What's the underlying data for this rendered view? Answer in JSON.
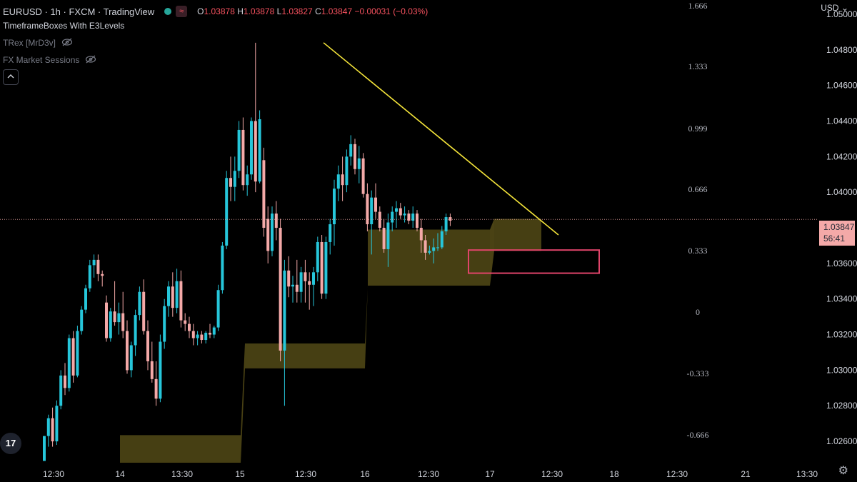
{
  "header": {
    "symbol": "EURUSD · 1h · FXCM · TradingView",
    "ohlc": {
      "o_label": "O",
      "o": "1.03878",
      "h_label": "H",
      "h": "1.03878",
      "l_label": "L",
      "l": "1.03827",
      "c_label": "C",
      "c": "1.03847",
      "change": "−0.00031 (−0.03%)"
    },
    "wave_icon": "≈"
  },
  "indicators": [
    {
      "name": "TimeframeBoxes With E3Levels",
      "hidden": false
    },
    {
      "name": "TRex [MrD3v]",
      "hidden": true
    },
    {
      "name": "FX Market Sessions",
      "hidden": true
    }
  ],
  "currency": "USD",
  "current_price": {
    "value": "1.03847",
    "countdown": "56:41"
  },
  "colors": {
    "up": "#26c6da",
    "down": "#f4a9a8",
    "trendline": "#f5e53a",
    "box": "#4a4214",
    "rect": "#e0446a"
  },
  "chart_data": {
    "type": "candlestick",
    "ylim": [
      1.0248,
      1.0508
    ],
    "y_ticks": [
      "1.05000",
      "1.04800",
      "1.04600",
      "1.04400",
      "1.04200",
      "1.04000",
      "1.03600",
      "1.03400",
      "1.03200",
      "1.03000",
      "1.02800",
      "1.02600"
    ],
    "x_ticks": [
      "12:30",
      "14",
      "13:30",
      "15",
      "12:30",
      "16",
      "12:30",
      "17",
      "12:30",
      "18",
      "12:30",
      "21",
      "13:30"
    ],
    "fib_levels": [
      "1.666",
      "1.333",
      "0.999",
      "0.666",
      "0.333",
      "0",
      "-0.333",
      "-0.666"
    ],
    "candles": [
      [
        1.0249,
        1.0263,
        1.0249,
        1.0263
      ],
      [
        1.0263,
        1.0275,
        1.0257,
        1.0273
      ],
      [
        1.0273,
        1.0279,
        1.0257,
        1.026
      ],
      [
        1.026,
        1.0283,
        1.0258,
        1.028
      ],
      [
        1.028,
        1.03,
        1.0278,
        1.0297
      ],
      [
        1.0297,
        1.0304,
        1.0286,
        1.029
      ],
      [
        1.029,
        1.032,
        1.0288,
        1.0318
      ],
      [
        1.0318,
        1.0322,
        1.0293,
        1.0297
      ],
      [
        1.0297,
        1.0325,
        1.0296,
        1.0322
      ],
      [
        1.0322,
        1.0336,
        1.032,
        1.0334
      ],
      [
        1.0334,
        1.0348,
        1.0332,
        1.0346
      ],
      [
        1.0346,
        1.0362,
        1.0344,
        1.0359
      ],
      [
        1.0359,
        1.0365,
        1.0352,
        1.0362
      ],
      [
        1.0362,
        1.0365,
        1.035,
        1.0354
      ],
      [
        1.0354,
        1.0356,
        1.0347,
        1.0353
      ],
      [
        1.0338,
        1.0342,
        1.0316,
        1.0318
      ],
      [
        1.0318,
        1.0335,
        1.0316,
        1.0333
      ],
      [
        1.0333,
        1.035,
        1.0325,
        1.0327
      ],
      [
        1.0327,
        1.0338,
        1.032,
        1.0332
      ],
      [
        1.0332,
        1.0344,
        1.0318,
        1.0322
      ],
      [
        1.0322,
        1.0328,
        1.0298,
        1.03
      ],
      [
        1.03,
        1.0316,
        1.0296,
        1.0314
      ],
      [
        1.0314,
        1.0334,
        1.0308,
        1.0331
      ],
      [
        1.0331,
        1.0347,
        1.0328,
        1.0344
      ],
      [
        1.0344,
        1.0351,
        1.032,
        1.0322
      ],
      [
        1.0322,
        1.0328,
        1.03,
        1.0305
      ],
      [
        1.0305,
        1.0316,
        1.0293,
        1.0295
      ],
      [
        1.0295,
        1.0305,
        1.028,
        1.0284
      ],
      [
        1.0284,
        1.032,
        1.0282,
        1.0316
      ],
      [
        1.0316,
        1.034,
        1.0312,
        1.0336
      ],
      [
        1.0336,
        1.035,
        1.033,
        1.0347
      ],
      [
        1.0347,
        1.0355,
        1.033,
        1.0335
      ],
      [
        1.0335,
        1.0357,
        1.0332,
        1.035
      ],
      [
        1.035,
        1.0356,
        1.0324,
        1.0328
      ],
      [
        1.0328,
        1.0332,
        1.0322,
        1.0326
      ],
      [
        1.0326,
        1.033,
        1.0318,
        1.0322
      ],
      [
        1.0322,
        1.0326,
        1.0314,
        1.0318
      ],
      [
        1.0318,
        1.0322,
        1.0314,
        1.032
      ],
      [
        1.032,
        1.0322,
        1.0315,
        1.0317
      ],
      [
        1.0317,
        1.0322,
        1.0315,
        1.0321
      ],
      [
        1.0321,
        1.0326,
        1.0318,
        1.032
      ],
      [
        1.032,
        1.0325,
        1.0318,
        1.0324
      ],
      [
        1.0324,
        1.0348,
        1.0322,
        1.0345
      ],
      [
        1.0345,
        1.0372,
        1.0343,
        1.037
      ],
      [
        1.037,
        1.0412,
        1.0368,
        1.0408
      ],
      [
        1.0408,
        1.042,
        1.0395,
        1.0403
      ],
      [
        1.0403,
        1.042,
        1.0395,
        1.0412
      ],
      [
        1.0412,
        1.044,
        1.0408,
        1.0435
      ],
      [
        1.0435,
        1.0442,
        1.0401,
        1.0404
      ],
      [
        1.0404,
        1.0415,
        1.0398,
        1.041
      ],
      [
        1.041,
        1.0442,
        1.0407,
        1.044
      ],
      [
        1.044,
        1.0484,
        1.04,
        1.0406
      ],
      [
        1.0406,
        1.0446,
        1.0405,
        1.0441
      ],
      [
        1.0418,
        1.0425,
        1.0375,
        1.038
      ],
      [
        1.0385,
        1.0392,
        1.036,
        1.0367
      ],
      [
        1.0367,
        1.0392,
        1.0364,
        1.0388
      ],
      [
        1.0388,
        1.0395,
        1.0373,
        1.038
      ],
      [
        1.038,
        1.0385,
        1.0305,
        1.0311
      ],
      [
        1.0311,
        1.0362,
        1.028,
        1.0356
      ],
      [
        1.0356,
        1.0364,
        1.0341,
        1.0347
      ],
      [
        1.0347,
        1.0353,
        1.0338,
        1.0348
      ],
      [
        1.0348,
        1.0362,
        1.0338,
        1.0344
      ],
      [
        1.0344,
        1.0358,
        1.0338,
        1.0355
      ],
      [
        1.0355,
        1.0362,
        1.0338,
        1.035
      ],
      [
        1.035,
        1.0355,
        1.0334,
        1.0348
      ],
      [
        1.0348,
        1.0358,
        1.0336,
        1.0355
      ],
      [
        1.0355,
        1.0375,
        1.035,
        1.0372
      ],
      [
        1.0372,
        1.0376,
        1.034,
        1.0343
      ],
      [
        1.0343,
        1.0375,
        1.034,
        1.0372
      ],
      [
        1.0372,
        1.0385,
        1.0365,
        1.0382
      ],
      [
        1.0382,
        1.0407,
        1.037,
        1.0402
      ],
      [
        1.0402,
        1.0415,
        1.0395,
        1.041
      ],
      [
        1.041,
        1.042,
        1.0395,
        1.0404
      ],
      [
        1.0404,
        1.0424,
        1.04,
        1.042
      ],
      [
        1.042,
        1.0432,
        1.0415,
        1.0427
      ],
      [
        1.0427,
        1.043,
        1.041,
        1.0413
      ],
      [
        1.0413,
        1.0426,
        1.0405,
        1.0419
      ],
      [
        1.0419,
        1.0422,
        1.0397,
        1.0399
      ],
      [
        1.0399,
        1.0405,
        1.0378,
        1.0382
      ],
      [
        1.0382,
        1.0401,
        1.0365,
        1.0397
      ],
      [
        1.0397,
        1.0405,
        1.0385,
        1.0389
      ],
      [
        1.0389,
        1.0392,
        1.0378,
        1.038
      ],
      [
        1.038,
        1.0385,
        1.0366,
        1.0368
      ],
      [
        1.0368,
        1.0388,
        1.0358,
        1.0383
      ],
      [
        1.0383,
        1.0392,
        1.0378,
        1.0389
      ],
      [
        1.0389,
        1.0395,
        1.038,
        1.0391
      ],
      [
        1.0391,
        1.0394,
        1.0385,
        1.0387
      ],
      [
        1.0387,
        1.0392,
        1.0383,
        1.0388
      ],
      [
        1.0388,
        1.039,
        1.0382,
        1.0384
      ],
      [
        1.0384,
        1.0392,
        1.038,
        1.0388
      ],
      [
        1.0388,
        1.039,
        1.0378,
        1.038
      ],
      [
        1.038,
        1.0385,
        1.0366,
        1.0373
      ],
      [
        1.0373,
        1.0376,
        1.0362,
        1.0366
      ],
      [
        1.0366,
        1.037,
        1.0365,
        1.0367
      ],
      [
        1.0367,
        1.0374,
        1.036,
        1.0369
      ],
      [
        1.0369,
        1.0377,
        1.0367,
        1.0369
      ],
      [
        1.0369,
        1.0381,
        1.0368,
        1.0378
      ],
      [
        1.0378,
        1.0388,
        1.0376,
        1.0386
      ],
      [
        1.0386,
        1.0388,
        1.0381,
        1.0384
      ]
    ],
    "trendline": [
      [
        1.0484,
        1.0376
      ]
    ],
    "current_line": 1.03847
  }
}
